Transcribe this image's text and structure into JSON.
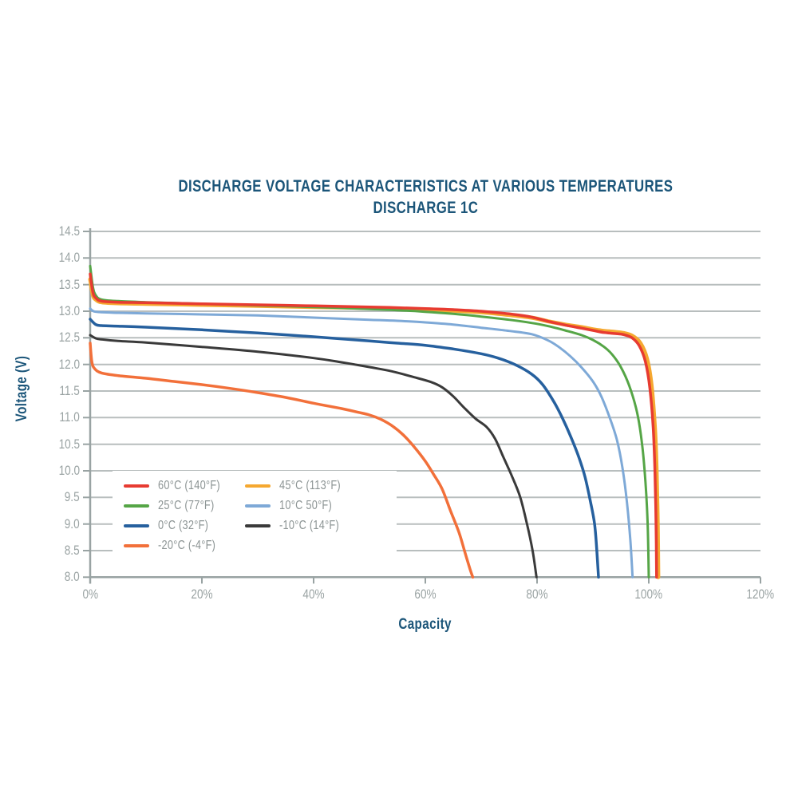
{
  "chart": {
    "title_line1": "DISCHARGE VOLTAGE CHARACTERISTICS AT VARIOUS TEMPERATURES",
    "title_line2": "DISCHARGE 1C",
    "x_axis": {
      "label": "Capacity",
      "tick_labels": [
        "0%",
        "20%",
        "40%",
        "60%",
        "80%",
        "100%",
        "120%"
      ]
    },
    "y_axis": {
      "label": "Voltage (V)",
      "tick_labels": [
        "14.5",
        "14.0",
        "13.5",
        "13.0",
        "12.5",
        "12.0",
        "11.5",
        "11.0",
        "10.5",
        "10.0",
        "9.5",
        "9.0",
        "8.5",
        "8.0"
      ]
    },
    "colors": {
      "title": "#1b5579",
      "tick_text": "#9aa3a3",
      "legend_text": "#8c9494",
      "gridline": "#b8bebe",
      "axis_line": "#99a3a3"
    }
  },
  "chart_data": {
    "type": "line",
    "title": "DISCHARGE VOLTAGE CHARACTERISTICS AT VARIOUS TEMPERATURES",
    "subtitle": "DISCHARGE 1C",
    "xlabel": "Capacity",
    "ylabel": "Voltage (V)",
    "xlim": [
      0,
      120
    ],
    "ylim": [
      8.0,
      14.5
    ],
    "x_unit": "percent",
    "y_tick_step": 0.5,
    "x_tick_step": 20,
    "grid": "horizontal-only",
    "legend_position": "inside-lower-left",
    "series": [
      {
        "name": "60°C (140°F)",
        "color": "#e73b31",
        "points": [
          [
            0,
            13.7
          ],
          [
            0.5,
            13.35
          ],
          [
            1,
            13.25
          ],
          [
            2,
            13.19
          ],
          [
            5,
            13.17
          ],
          [
            10,
            13.16
          ],
          [
            20,
            13.14
          ],
          [
            30,
            13.12
          ],
          [
            40,
            13.1
          ],
          [
            50,
            13.08
          ],
          [
            60,
            13.05
          ],
          [
            65,
            13.03
          ],
          [
            70,
            13.0
          ],
          [
            75,
            12.95
          ],
          [
            79,
            12.89
          ],
          [
            82,
            12.81
          ],
          [
            85,
            12.74
          ],
          [
            88,
            12.68
          ],
          [
            90,
            12.64
          ],
          [
            92,
            12.6
          ],
          [
            94,
            12.58
          ],
          [
            95.5,
            12.56
          ],
          [
            97,
            12.5
          ],
          [
            98.3,
            12.35
          ],
          [
            99.4,
            12.05
          ],
          [
            100.2,
            11.55
          ],
          [
            100.8,
            10.8
          ],
          [
            101.1,
            10.0
          ],
          [
            101.3,
            9.0
          ],
          [
            101.4,
            8.0
          ]
        ]
      },
      {
        "name": "45°C (113°F)",
        "color": "#f5a830",
        "points": [
          [
            0,
            13.6
          ],
          [
            0.5,
            13.3
          ],
          [
            1,
            13.22
          ],
          [
            2,
            13.17
          ],
          [
            5,
            13.15
          ],
          [
            10,
            13.14
          ],
          [
            20,
            13.12
          ],
          [
            30,
            13.1
          ],
          [
            40,
            13.08
          ],
          [
            50,
            13.06
          ],
          [
            60,
            13.03
          ],
          [
            65,
            13.01
          ],
          [
            70,
            12.98
          ],
          [
            75,
            12.93
          ],
          [
            79,
            12.88
          ],
          [
            82,
            12.81
          ],
          [
            85,
            12.75
          ],
          [
            88,
            12.7
          ],
          [
            90,
            12.66
          ],
          [
            92,
            12.63
          ],
          [
            94,
            12.61
          ],
          [
            95.5,
            12.59
          ],
          [
            97,
            12.54
          ],
          [
            98.5,
            12.4
          ],
          [
            99.7,
            12.1
          ],
          [
            100.5,
            11.6
          ],
          [
            101.1,
            10.8
          ],
          [
            101.4,
            10.0
          ],
          [
            101.6,
            9.0
          ],
          [
            101.7,
            8.0
          ]
        ]
      },
      {
        "name": "25°C (77°F)",
        "color": "#55a546",
        "points": [
          [
            0,
            13.85
          ],
          [
            0.5,
            13.45
          ],
          [
            1,
            13.3
          ],
          [
            2,
            13.22
          ],
          [
            5,
            13.19
          ],
          [
            10,
            13.17
          ],
          [
            20,
            13.14
          ],
          [
            30,
            13.11
          ],
          [
            40,
            13.08
          ],
          [
            50,
            13.04
          ],
          [
            55,
            13.02
          ],
          [
            60,
            12.99
          ],
          [
            65,
            12.95
          ],
          [
            70,
            12.9
          ],
          [
            75,
            12.84
          ],
          [
            79,
            12.78
          ],
          [
            82,
            12.72
          ],
          [
            85,
            12.64
          ],
          [
            88,
            12.55
          ],
          [
            90,
            12.46
          ],
          [
            92,
            12.33
          ],
          [
            93.5,
            12.18
          ],
          [
            95,
            11.95
          ],
          [
            96.5,
            11.6
          ],
          [
            97.9,
            11.1
          ],
          [
            98.8,
            10.5
          ],
          [
            99.4,
            9.8
          ],
          [
            99.8,
            9.0
          ],
          [
            100,
            8.0
          ]
        ]
      },
      {
        "name": "10°C 50°F)",
        "color": "#7ea9d7",
        "points": [
          [
            0,
            13.05
          ],
          [
            1,
            12.99
          ],
          [
            5,
            12.97
          ],
          [
            10,
            12.96
          ],
          [
            20,
            12.94
          ],
          [
            30,
            12.92
          ],
          [
            40,
            12.88
          ],
          [
            50,
            12.84
          ],
          [
            55,
            12.82
          ],
          [
            60,
            12.79
          ],
          [
            65,
            12.75
          ],
          [
            70,
            12.69
          ],
          [
            75,
            12.63
          ],
          [
            79,
            12.57
          ],
          [
            82,
            12.45
          ],
          [
            84,
            12.32
          ],
          [
            86,
            12.15
          ],
          [
            88,
            11.94
          ],
          [
            90,
            11.68
          ],
          [
            91.5,
            11.4
          ],
          [
            93,
            11.0
          ],
          [
            94.3,
            10.58
          ],
          [
            95.3,
            10.05
          ],
          [
            96.1,
            9.4
          ],
          [
            96.7,
            8.7
          ],
          [
            97.1,
            8.0
          ]
        ]
      },
      {
        "name": "0°C (32°F)",
        "color": "#26609e",
        "points": [
          [
            0,
            12.85
          ],
          [
            1,
            12.75
          ],
          [
            2,
            12.73
          ],
          [
            5,
            12.72
          ],
          [
            10,
            12.7
          ],
          [
            20,
            12.65
          ],
          [
            30,
            12.59
          ],
          [
            40,
            12.52
          ],
          [
            50,
            12.44
          ],
          [
            55,
            12.4
          ],
          [
            60,
            12.36
          ],
          [
            65,
            12.29
          ],
          [
            70,
            12.2
          ],
          [
            73,
            12.12
          ],
          [
            76,
            12.0
          ],
          [
            79,
            11.82
          ],
          [
            81,
            11.62
          ],
          [
            83,
            11.3
          ],
          [
            84.5,
            11.0
          ],
          [
            86,
            10.65
          ],
          [
            87.5,
            10.25
          ],
          [
            88.6,
            9.88
          ],
          [
            89.6,
            9.4
          ],
          [
            90.3,
            9.0
          ],
          [
            90.7,
            8.5
          ],
          [
            91,
            8.0
          ]
        ]
      },
      {
        "name": "-10°C (14°F)",
        "color": "#3a3a3a",
        "points": [
          [
            0,
            12.55
          ],
          [
            1,
            12.49
          ],
          [
            2,
            12.47
          ],
          [
            5,
            12.44
          ],
          [
            10,
            12.41
          ],
          [
            20,
            12.33
          ],
          [
            30,
            12.24
          ],
          [
            40,
            12.12
          ],
          [
            45,
            12.04
          ],
          [
            50,
            11.95
          ],
          [
            54,
            11.87
          ],
          [
            58,
            11.76
          ],
          [
            61,
            11.67
          ],
          [
            63,
            11.57
          ],
          [
            65,
            11.4
          ],
          [
            67,
            11.18
          ],
          [
            69,
            10.98
          ],
          [
            71,
            10.82
          ],
          [
            72.5,
            10.6
          ],
          [
            74,
            10.25
          ],
          [
            75.5,
            9.9
          ],
          [
            77,
            9.5
          ],
          [
            78.2,
            9.0
          ],
          [
            79.2,
            8.5
          ],
          [
            79.9,
            8.0
          ]
        ]
      },
      {
        "name": "-20°C (-4°F)",
        "color": "#f2703a",
        "points": [
          [
            0,
            12.4
          ],
          [
            0.3,
            12.05
          ],
          [
            0.8,
            11.92
          ],
          [
            2,
            11.84
          ],
          [
            5,
            11.79
          ],
          [
            10,
            11.74
          ],
          [
            15,
            11.68
          ],
          [
            20,
            11.62
          ],
          [
            25,
            11.55
          ],
          [
            30,
            11.47
          ],
          [
            35,
            11.38
          ],
          [
            40,
            11.27
          ],
          [
            45,
            11.17
          ],
          [
            48,
            11.1
          ],
          [
            50,
            11.05
          ],
          [
            52,
            10.97
          ],
          [
            54,
            10.85
          ],
          [
            56,
            10.68
          ],
          [
            58,
            10.45
          ],
          [
            60,
            10.18
          ],
          [
            61.5,
            9.93
          ],
          [
            63,
            9.66
          ],
          [
            64.5,
            9.25
          ],
          [
            66,
            8.85
          ],
          [
            67,
            8.5
          ],
          [
            68,
            8.15
          ],
          [
            68.5,
            8.0
          ]
        ]
      }
    ]
  }
}
